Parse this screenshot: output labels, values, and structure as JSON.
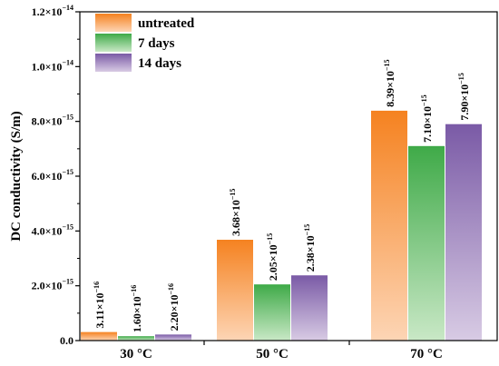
{
  "chart_data": {
    "type": "bar",
    "categories": [
      "30 °C",
      "50 °C",
      "70 °C"
    ],
    "series": [
      {
        "name": "untreated",
        "values": [
          3.11e-16,
          3.68e-15,
          8.39e-15
        ],
        "labels": [
          [
            "3.11×10",
            "−16"
          ],
          [
            "3.68×10",
            "−15"
          ],
          [
            "8.39×10",
            "−15"
          ]
        ]
      },
      {
        "name": "7 days",
        "values": [
          1.6e-16,
          2.05e-15,
          7.1e-15
        ],
        "labels": [
          [
            "1.60×10",
            "−16"
          ],
          [
            "2.05×10",
            "−15"
          ],
          [
            "7.10×10",
            "−15"
          ]
        ]
      },
      {
        "name": "14 days",
        "values": [
          2.2e-16,
          2.38e-15,
          7.9e-15
        ],
        "labels": [
          [
            "2.20×10",
            "−16"
          ],
          [
            "2.38×10",
            "−15"
          ],
          [
            "7.90×10",
            "−15"
          ]
        ]
      }
    ],
    "ylabel": "DC conductivity (S/m)",
    "xlabel": "",
    "ylim": [
      0,
      1.2e-14
    ],
    "yticks": [
      {
        "value": 0,
        "mantissa": "0.0",
        "exp": ""
      },
      {
        "value": 2e-15,
        "mantissa": "2.0×10",
        "exp": "−15"
      },
      {
        "value": 4e-15,
        "mantissa": "4.0×10",
        "exp": "−15"
      },
      {
        "value": 6e-15,
        "mantissa": "6.0×10",
        "exp": "−15"
      },
      {
        "value": 8e-15,
        "mantissa": "8.0×10",
        "exp": "−15"
      },
      {
        "value": 1e-14,
        "mantissa": "1.0×10",
        "exp": "−14"
      },
      {
        "value": 1.2e-14,
        "mantissa": "1.2×10",
        "exp": "−14"
      }
    ],
    "legend_position": "top-left",
    "grid": false,
    "colors": {
      "untreated": {
        "dark": "#f58220",
        "light": "#fdd5b5"
      },
      "7 days": {
        "dark": "#3faa48",
        "light": "#c9e8c6"
      },
      "14 days": {
        "dark": "#7a5aa6",
        "light": "#d8cbe4"
      }
    }
  }
}
